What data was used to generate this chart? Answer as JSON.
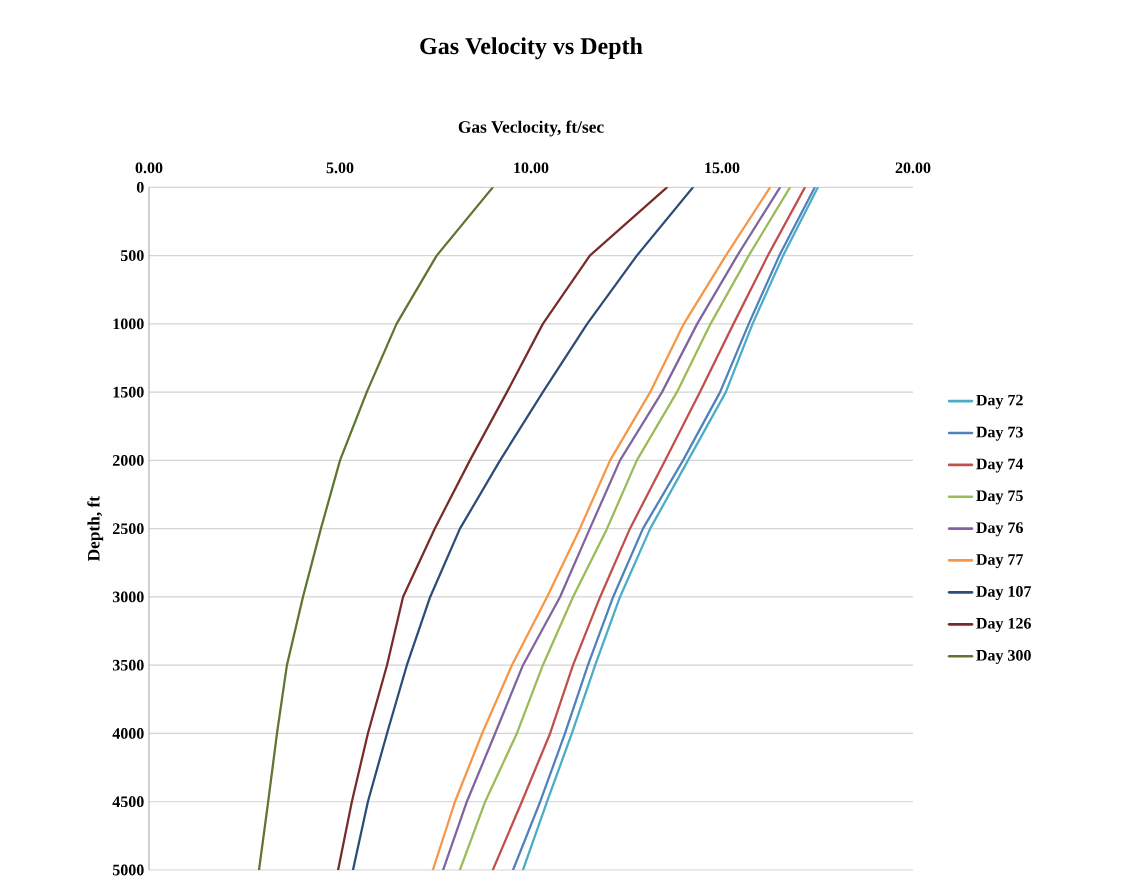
{
  "chart_data": {
    "type": "line",
    "title": "Gas Velocity vs Depth",
    "xlabel": "Gas Veclocity, ft/sec",
    "ylabel": "Depth, ft",
    "xlim": [
      0,
      20
    ],
    "xticks": [
      {
        "value": 0,
        "label": "0.00"
      },
      {
        "value": 5,
        "label": "5.00"
      },
      {
        "value": 10,
        "label": "10.00"
      },
      {
        "value": 15,
        "label": "15.00"
      },
      {
        "value": 20,
        "label": "20.00"
      }
    ],
    "ylim": [
      5000,
      0
    ],
    "yticks": [
      0,
      500,
      1000,
      1500,
      2000,
      2500,
      3000,
      3500,
      4000,
      4500,
      5000
    ],
    "grid": "y",
    "legend": "right",
    "marker": "none",
    "line_style": "solid",
    "series": [
      {
        "name": "Day 72",
        "color": "#4bacc6",
        "x": [
          17.51,
          16.6,
          15.8,
          15.1,
          14.11,
          13.12,
          12.33,
          11.68,
          11.07,
          10.42,
          9.79
        ],
        "values": [
          0,
          500,
          1000,
          1500,
          2000,
          2500,
          3000,
          3500,
          4000,
          4500,
          5000
        ]
      },
      {
        "name": "Day 73",
        "color": "#4f81bd",
        "x": [
          17.43,
          16.5,
          15.7,
          14.95,
          13.98,
          12.93,
          12.15,
          11.49,
          10.89,
          10.24,
          9.53
        ],
        "values": [
          0,
          500,
          1000,
          1500,
          2000,
          2500,
          3000,
          3500,
          4000,
          4500,
          5000
        ]
      },
      {
        "name": "Day 74",
        "color": "#c0504d",
        "x": [
          17.17,
          16.2,
          15.3,
          14.42,
          13.51,
          12.59,
          11.81,
          11.1,
          10.5,
          9.76,
          9.0
        ],
        "values": [
          0,
          500,
          1000,
          1500,
          2000,
          2500,
          3000,
          3500,
          4000,
          4500,
          5000
        ]
      },
      {
        "name": "Day 75",
        "color": "#9bbb59",
        "x": [
          16.78,
          15.7,
          14.7,
          13.82,
          12.77,
          11.99,
          11.1,
          10.31,
          9.63,
          8.8,
          8.14
        ],
        "values": [
          0,
          500,
          1000,
          1500,
          2000,
          2500,
          3000,
          3500,
          4000,
          4500,
          5000
        ]
      },
      {
        "name": "Day 76",
        "color": "#8064a2",
        "x": [
          16.52,
          15.4,
          14.35,
          13.43,
          12.33,
          11.54,
          10.76,
          9.79,
          9.06,
          8.32,
          7.7
        ],
        "values": [
          0,
          500,
          1000,
          1500,
          2000,
          2500,
          3000,
          3500,
          4000,
          4500,
          5000
        ]
      },
      {
        "name": "Day 77",
        "color": "#f79646",
        "x": [
          16.26,
          15.1,
          14.0,
          13.12,
          12.07,
          11.28,
          10.42,
          9.5,
          8.72,
          8.01,
          7.43
        ],
        "values": [
          0,
          500,
          1000,
          1500,
          2000,
          2500,
          3000,
          3500,
          4000,
          4500,
          5000
        ]
      },
      {
        "name": "Day 107",
        "color": "#2c4d75",
        "x": [
          14.24,
          12.77,
          11.47,
          10.31,
          9.19,
          8.14,
          7.36,
          6.75,
          6.23,
          5.73,
          5.34
        ],
        "values": [
          0,
          500,
          1000,
          1500,
          2000,
          2500,
          3000,
          3500,
          4000,
          4500,
          5000
        ]
      },
      {
        "name": "Day 126",
        "color": "#772c2a",
        "x": [
          13.56,
          11.54,
          10.31,
          9.37,
          8.4,
          7.48,
          6.65,
          6.23,
          5.73,
          5.31,
          4.95
        ],
        "values": [
          0,
          500,
          1000,
          1500,
          2000,
          2500,
          3000,
          3500,
          4000,
          4500,
          5000
        ]
      },
      {
        "name": "Day 300",
        "color": "#5f7530",
        "x": [
          9.0,
          7.53,
          6.48,
          5.7,
          5.0,
          4.5,
          4.03,
          3.61,
          3.35,
          3.12,
          2.88
        ],
        "values": [
          0,
          500,
          1000,
          1500,
          2000,
          2500,
          3000,
          3500,
          4000,
          4500,
          5000
        ]
      }
    ]
  }
}
